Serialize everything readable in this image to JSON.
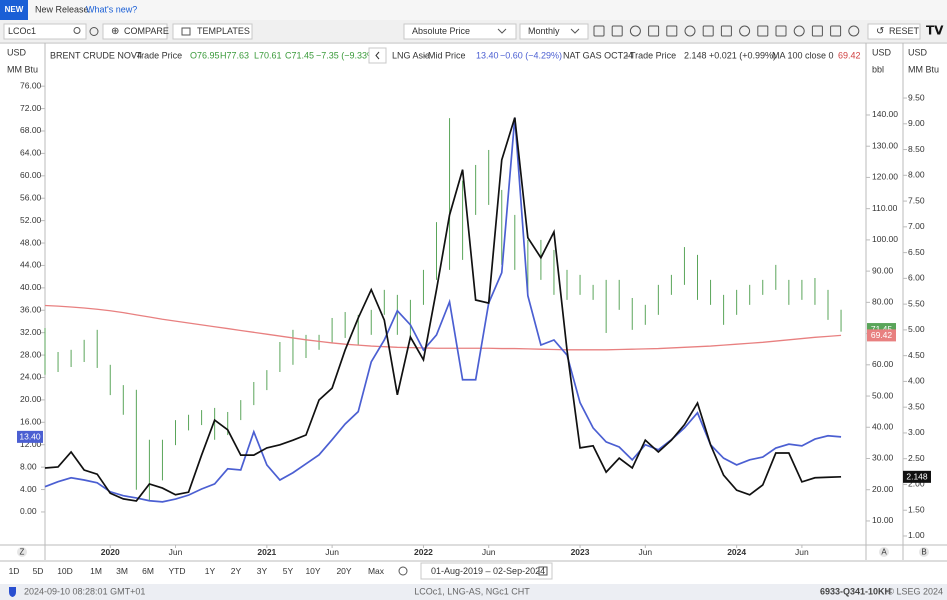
{
  "banner": {
    "badge": "NEW",
    "text": "New Release.",
    "link": "What's new?"
  },
  "toolbar": {
    "ric": "LCOc1",
    "compare": "COMPARE",
    "templates": "TEMPLATES",
    "price_mode": "Absolute Price",
    "interval": "Monthly",
    "reset": "RESET"
  },
  "legend": {
    "brent": {
      "field": "Trade Price",
      "open": "O76.95",
      "high": "H77.63",
      "low": "L70.61",
      "close": "C71.45",
      "change": "−7.35 (−9.33%)"
    },
    "lng": {
      "field": "Mid Price",
      "change": "−0.60 (−4.29%)"
    },
    "natgas": {
      "field": "Trade Price",
      "change": "+0.021 (+0.99%)"
    }
  },
  "axis_units": {
    "left": [
      "USD",
      "MM Btu"
    ],
    "middle": [
      "USD",
      "bbl"
    ],
    "right": [
      "USD",
      "MM Btu"
    ]
  },
  "axis_letters": [
    "Z",
    "A",
    "B"
  ],
  "chart_data": {
    "type": "line",
    "grid": false,
    "x": [
      "2019-08",
      "2019-09",
      "2019-10",
      "2019-11",
      "2019-12",
      "2020-01",
      "2020-02",
      "2020-03",
      "2020-04",
      "2020-05",
      "2020-06",
      "2020-07",
      "2020-08",
      "2020-09",
      "2020-10",
      "2020-11",
      "2020-12",
      "2021-01",
      "2021-02",
      "2021-03",
      "2021-04",
      "2021-05",
      "2021-06",
      "2021-07",
      "2021-08",
      "2021-09",
      "2021-10",
      "2021-11",
      "2021-12",
      "2022-01",
      "2022-02",
      "2022-03",
      "2022-04",
      "2022-05",
      "2022-06",
      "2022-07",
      "2022-08",
      "2022-09",
      "2022-10",
      "2022-11",
      "2022-12",
      "2023-01",
      "2023-02",
      "2023-03",
      "2023-04",
      "2023-05",
      "2023-06",
      "2023-07",
      "2023-08",
      "2023-09",
      "2023-10",
      "2023-11",
      "2023-12",
      "2024-01",
      "2024-02",
      "2024-03",
      "2024-04",
      "2024-05",
      "2024-06",
      "2024-07",
      "2024-08",
      "2024-09"
    ],
    "xticks": [
      {
        "value": "2020-01",
        "label": "2020"
      },
      {
        "value": "2020-06",
        "label": "Jun"
      },
      {
        "value": "2021-01",
        "label": "2021"
      },
      {
        "value": "2021-06",
        "label": "Jun"
      },
      {
        "value": "2022-01",
        "label": "2022"
      },
      {
        "value": "2022-06",
        "label": "Jun"
      },
      {
        "value": "2023-01",
        "label": "2023"
      },
      {
        "value": "2023-06",
        "label": "Jun"
      },
      {
        "value": "2024-01",
        "label": "2024"
      },
      {
        "value": "2024-06",
        "label": "Jun"
      }
    ],
    "ylim": [
      -5.9,
      77.1
    ],
    "yticks": [
      {
        "value": 0,
        "label": "0.00"
      },
      {
        "value": 4,
        "label": "4.00"
      },
      {
        "value": 8,
        "label": "8.00"
      },
      {
        "value": 12,
        "label": "12.00"
      },
      {
        "value": 16,
        "label": "16.00"
      },
      {
        "value": 20,
        "label": "20.00"
      },
      {
        "value": 24,
        "label": "24.00"
      },
      {
        "value": 28,
        "label": "28.00"
      },
      {
        "value": 32,
        "label": "32.00"
      },
      {
        "value": 36,
        "label": "36.00"
      },
      {
        "value": 40,
        "label": "40.00"
      },
      {
        "value": 44,
        "label": "44.00"
      },
      {
        "value": 48,
        "label": "48.00"
      },
      {
        "value": 52,
        "label": "52.00"
      },
      {
        "value": 56,
        "label": "56.00"
      },
      {
        "value": 60,
        "label": "60.00"
      },
      {
        "value": 64,
        "label": "64.00"
      },
      {
        "value": 68,
        "label": "68.00"
      },
      {
        "value": 72,
        "label": "72.00"
      },
      {
        "value": 76,
        "label": "76.00"
      }
    ],
    "y2lim": [
      2.3,
      151.2
    ],
    "y2ticks": [
      {
        "value": 10,
        "label": "10.00"
      },
      {
        "value": 20,
        "label": "20.00"
      },
      {
        "value": 30,
        "label": "30.00"
      },
      {
        "value": 40,
        "label": "40.00"
      },
      {
        "value": 50,
        "label": "50.00"
      },
      {
        "value": 60,
        "label": "60.00"
      },
      {
        "value": 70,
        "label": "70.00"
      },
      {
        "value": 80,
        "label": "80.00"
      },
      {
        "value": 90,
        "label": "90.00"
      },
      {
        "value": 100,
        "label": "100.00"
      },
      {
        "value": 110,
        "label": "110.00"
      },
      {
        "value": 120,
        "label": "120.00"
      },
      {
        "value": 130,
        "label": "130.00"
      },
      {
        "value": 140,
        "label": "140.00"
      }
    ],
    "y3lim": [
      0.825,
      9.85
    ],
    "y3ticks": [
      {
        "value": 1,
        "label": "1.00"
      },
      {
        "value": 1.5,
        "label": "1.50"
      },
      {
        "value": 2,
        "label": "2.00"
      },
      {
        "value": 2.5,
        "label": "2.50"
      },
      {
        "value": 3,
        "label": "3.00"
      },
      {
        "value": 3.5,
        "label": "3.50"
      },
      {
        "value": 4,
        "label": "4.00"
      },
      {
        "value": 4.5,
        "label": "4.50"
      },
      {
        "value": 5,
        "label": "5.00"
      },
      {
        "value": 5.5,
        "label": "5.50"
      },
      {
        "value": 6,
        "label": "6.00"
      },
      {
        "value": 6.5,
        "label": "6.50"
      },
      {
        "value": 7,
        "label": "7.00"
      },
      {
        "value": 7.5,
        "label": "7.50"
      },
      {
        "value": 8,
        "label": "8.00"
      },
      {
        "value": 8.5,
        "label": "8.50"
      },
      {
        "value": 9,
        "label": "9.00"
      },
      {
        "value": 9.5,
        "label": "9.50"
      }
    ],
    "series": [
      {
        "name": "BRENT CRUDE NOV4",
        "type": "range",
        "axis": "y2",
        "color": "#5aa55a",
        "close": 71.45,
        "high": [
          71.8,
          64.1,
          64.8,
          68.0,
          71.2,
          60.0,
          53.5,
          52.0,
          36.0,
          36.0,
          42.3,
          44.0,
          45.5,
          46.2,
          44.9,
          48.7,
          54.5,
          58.3,
          67.3,
          71.2,
          69.6,
          69.6,
          75.0,
          76.9,
          76.0,
          77.6,
          84.0,
          82.4,
          80.8,
          90.4,
          105.7,
          139.0,
          119.0,
          124.0,
          128.8,
          116.0,
          108.0,
          100.0,
          100.0,
          96.8,
          90.4,
          88.8,
          85.6,
          87.2,
          87.2,
          81.4,
          79.2,
          85.6,
          88.8,
          97.7,
          95.2,
          87.2,
          82.4,
          84.0,
          85.6,
          87.2,
          92.0,
          87.2,
          87.2,
          87.8,
          84.0,
          77.63
        ],
        "low": [
          56.8,
          57.7,
          59.3,
          60.9,
          59.0,
          50.3,
          44.0,
          20.0,
          16.7,
          23.0,
          34.3,
          39.0,
          40.7,
          36.0,
          37.5,
          42.3,
          47.1,
          51.9,
          57.7,
          60.0,
          62.2,
          64.8,
          67.0,
          68.6,
          66.4,
          69.6,
          76.0,
          69.6,
          68.0,
          79.2,
          87.2,
          90.4,
          93.6,
          108.0,
          111.2,
          92.0,
          90.4,
          82.4,
          87.2,
          82.4,
          80.8,
          82.4,
          80.8,
          70.2,
          77.6,
          71.2,
          72.8,
          76.0,
          82.4,
          85.6,
          80.8,
          79.2,
          72.8,
          76.0,
          79.2,
          82.4,
          84.0,
          79.2,
          80.8,
          79.2,
          74.4,
          70.61
        ]
      },
      {
        "name": "MA 100 close 0",
        "type": "line",
        "axis": "y2",
        "color": "#e88080",
        "values": [
          79.0,
          78.8,
          78.5,
          78.2,
          77.8,
          77.3,
          76.7,
          76.0,
          75.3,
          74.6,
          74.0,
          73.4,
          72.8,
          72.2,
          71.6,
          71.0,
          70.4,
          69.8,
          69.2,
          68.6,
          68.0,
          67.5,
          67.0,
          66.6,
          66.3,
          66.0,
          65.8,
          65.6,
          65.5,
          65.4,
          65.3,
          65.3,
          65.3,
          65.3,
          65.3,
          65.2,
          65.2,
          65.1,
          65.0,
          64.9,
          64.8,
          64.8,
          64.8,
          64.8,
          64.9,
          65.0,
          65.1,
          65.2,
          65.4,
          65.6,
          65.8,
          66.0,
          66.3,
          66.6,
          66.9,
          67.2,
          67.6,
          68.0,
          68.4,
          68.8,
          69.1,
          69.42
        ]
      },
      {
        "name": "LNG Asia",
        "type": "line",
        "axis": "y",
        "color": "#4b5fd2",
        "last_label": "13.40",
        "values": [
          4.5,
          5.4,
          6.1,
          5.7,
          5.2,
          3.6,
          2.9,
          2.5,
          2.0,
          1.8,
          2.3,
          3.0,
          4.1,
          5.0,
          7.7,
          7.5,
          14.3,
          8.4,
          5.7,
          7.0,
          8.6,
          10.2,
          12.9,
          15.7,
          17.9,
          26.8,
          30.7,
          35.9,
          33.4,
          28.9,
          31.6,
          37.5,
          23.6,
          23.6,
          37.3,
          42.7,
          70.4,
          38.6,
          29.8,
          30.7,
          28.0,
          19.5,
          15.0,
          12.5,
          11.6,
          9.3,
          12.0,
          11.1,
          12.9,
          15.0,
          17.7,
          12.0,
          9.6,
          8.4,
          9.3,
          9.8,
          11.4,
          12.1,
          11.8,
          13.0,
          13.6,
          13.4
        ]
      },
      {
        "name": "NAT GAS OCT24",
        "type": "line",
        "axis": "y3",
        "color": "#111111",
        "values": [
          2.32,
          2.34,
          2.63,
          2.28,
          2.2,
          1.83,
          1.72,
          1.68,
          2.01,
          1.93,
          1.8,
          1.85,
          2.57,
          3.25,
          3.06,
          2.57,
          2.57,
          2.71,
          2.77,
          2.86,
          2.96,
          3.64,
          3.87,
          4.61,
          5.23,
          5.78,
          5.19,
          3.74,
          4.86,
          4.42,
          5.78,
          7.23,
          8.11,
          5.58,
          5.52,
          8.3,
          9.12,
          6.79,
          6.4,
          6.9,
          4.61,
          2.71,
          2.75,
          2.24,
          2.51,
          2.32,
          2.86,
          2.63,
          2.86,
          3.16,
          3.58,
          2.77,
          2.18,
          1.89,
          1.8,
          1.99,
          2.61,
          2.61,
          2.05,
          2.13,
          2.14,
          2.148
        ]
      }
    ]
  },
  "ranges": [
    "1D",
    "5D",
    "10D",
    "1M",
    "3M",
    "6M",
    "YTD",
    "1Y",
    "2Y",
    "3Y",
    "5Y",
    "10Y",
    "20Y",
    "Max"
  ],
  "date_range": "01-Aug-2019 – 02-Sep-2024",
  "status": {
    "timestamp": "2024-09-10 08:28:01 GMT+01",
    "instruments": "LCOc1, LNG-AS, NGc1 CHT",
    "code": "6933-Q341-10KH",
    "copyright": "© LSEG 2024"
  }
}
